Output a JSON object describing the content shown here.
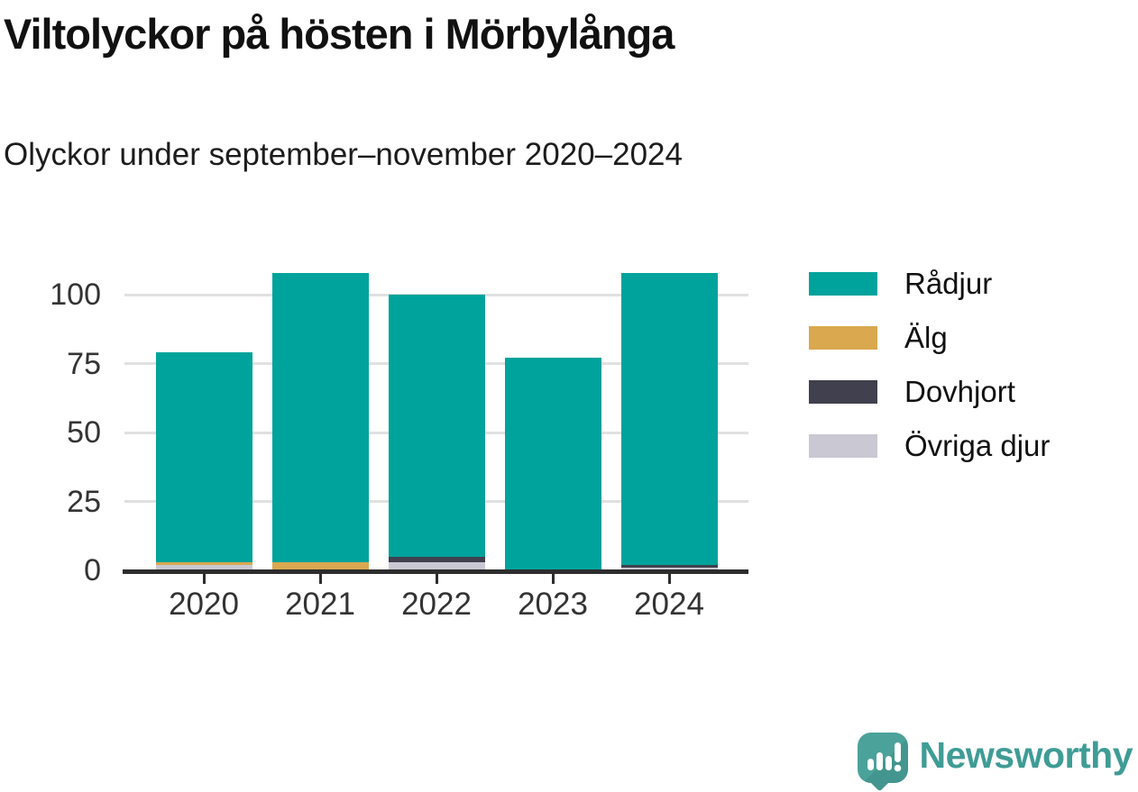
{
  "header": {
    "title": "Viltolyckor på hösten i Mörbylånga",
    "subtitle": "Olyckor under september–november 2020–2024"
  },
  "chart_data": {
    "type": "bar",
    "stacked": true,
    "title": "Viltolyckor på hösten i Mörbylånga",
    "subtitle": "Olyckor under september–november 2020–2024",
    "categories": [
      "2020",
      "2021",
      "2022",
      "2023",
      "2024"
    ],
    "series": [
      {
        "name": "Rådjur",
        "color": "#00a39b",
        "values": [
          76,
          105,
          95,
          77,
          106
        ]
      },
      {
        "name": "Älg",
        "color": "#d9a84f",
        "values": [
          1,
          3,
          0,
          0,
          0
        ]
      },
      {
        "name": "Dovhjort",
        "color": "#40404e",
        "values": [
          0,
          0,
          2,
          0,
          1
        ]
      },
      {
        "name": "Övriga djur",
        "color": "#c9c8d3",
        "values": [
          2,
          0,
          3,
          0,
          1
        ]
      }
    ],
    "totals": [
      79,
      108,
      100,
      77,
      108
    ],
    "stack_order_bottom_to_top": [
      "Övriga djur",
      "Dovhjort",
      "Älg",
      "Rådjur"
    ],
    "xlabel": "",
    "ylabel": "",
    "y_ticks": [
      0,
      25,
      50,
      75,
      100
    ],
    "ylim": [
      0,
      111
    ],
    "grid": "horizontal",
    "legend_position": "right",
    "axis_color": "#2d2d2d",
    "gridline_color": "#e0e0e0",
    "tick_label_color": "#333333"
  },
  "branding": {
    "logo_text": "Newsworthy",
    "logo_icon": "newsworthy-bubble-bar-chart-icon",
    "accent_color": "#3f9c95"
  }
}
